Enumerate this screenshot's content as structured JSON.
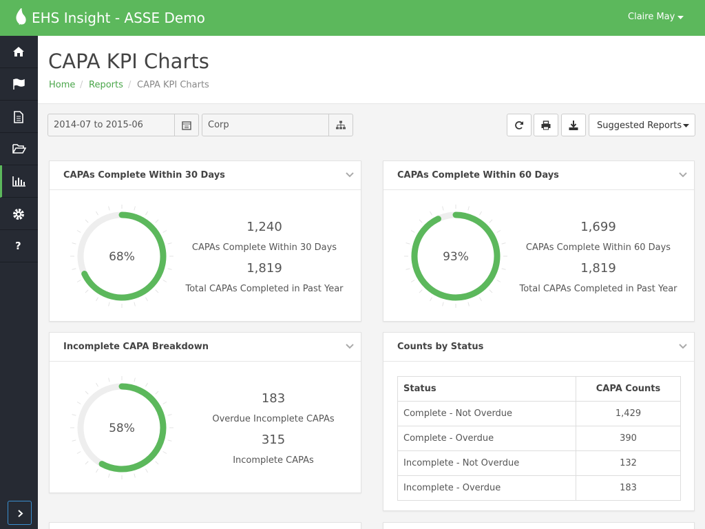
{
  "header": {
    "brand": "EHS Insight - ASSE Demo",
    "user": "Claire May"
  },
  "sidebar": {
    "help": "?"
  },
  "page": {
    "title": "CAPA KPI Charts",
    "breadcrumb": [
      "Home",
      "Reports",
      "CAPA KPI Charts"
    ]
  },
  "filters": {
    "date_range": "2014-07 to 2015-06",
    "location": "Corp",
    "suggested_reports": "Suggested Reports"
  },
  "panels": [
    {
      "title": "CAPAs Complete Within 30 Days",
      "gauge": {
        "value": 68,
        "label": "68%"
      },
      "stats": [
        {
          "value": "1,240",
          "label": "CAPAs Complete Within 30 Days"
        },
        {
          "value": "1,819",
          "label": "Total CAPAs Completed in Past Year"
        }
      ]
    },
    {
      "title": "CAPAs Complete Within 60 Days",
      "gauge": {
        "value": 93,
        "label": "93%"
      },
      "stats": [
        {
          "value": "1,699",
          "label": "CAPAs Complete Within 60 Days"
        },
        {
          "value": "1,819",
          "label": "Total CAPAs Completed in Past Year"
        }
      ]
    },
    {
      "title": "Incomplete CAPA Breakdown",
      "gauge": {
        "value": 58,
        "label": "58%"
      },
      "stats": [
        {
          "value": "183",
          "label": "Overdue Incomplete CAPAs"
        },
        {
          "value": "315",
          "label": "Incomplete CAPAs"
        }
      ]
    }
  ],
  "status_table": {
    "title": "Counts by Status",
    "columns": [
      "Status",
      "CAPA Counts"
    ],
    "rows": [
      [
        "Complete - Not Overdue",
        "1,429"
      ],
      [
        "Complete - Overdue",
        "390"
      ],
      [
        "Incomplete - Not Overdue",
        "132"
      ],
      [
        "Incomplete - Overdue",
        "183"
      ]
    ]
  }
}
